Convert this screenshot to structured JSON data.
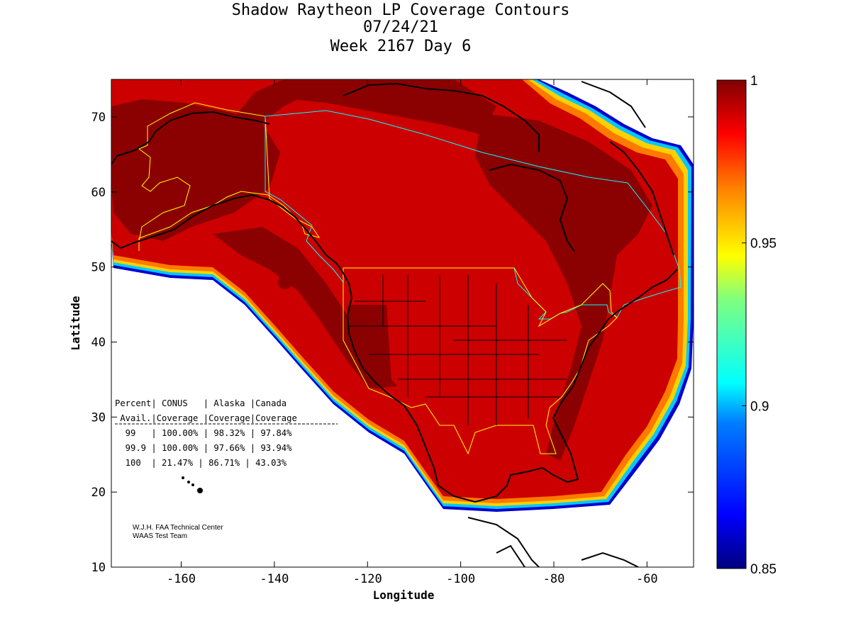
{
  "title": {
    "line1": "Shadow Raytheon LP Coverage Contours",
    "line2": "07/24/21",
    "line3": "Week 2167 Day 6"
  },
  "axes": {
    "xlabel": "Longitude",
    "ylabel": "Latitude",
    "xlim": [
      -175,
      -50
    ],
    "ylim": [
      10,
      75
    ],
    "xticks": [
      -160,
      -140,
      -120,
      -100,
      -80,
      -60
    ],
    "yticks": [
      10,
      20,
      30,
      40,
      50,
      60,
      70
    ]
  },
  "colorbar": {
    "min": 0.85,
    "max": 1,
    "ticks": [
      "1",
      "0.95",
      "0.9",
      "0.85"
    ],
    "colormap": "jet",
    "stops": [
      "#00007f",
      "#0000ff",
      "#007fff",
      "#00ffff",
      "#7fff7f",
      "#ffff00",
      "#ff7f00",
      "#ff0000",
      "#7f0000"
    ]
  },
  "colors": {
    "background_fill": "#cc0000",
    "highest_band": "#8b0000",
    "coastline": "#000000",
    "us_border": "#ffff00",
    "canada_border": "#00ffff"
  },
  "table": {
    "header1": "Percent| CONUS   | Alaska |Canada",
    "header2": " Avail.|Coverage |Coverage|Coverage",
    "rows": [
      "  99   | 100.00% | 98.32% | 97.84%",
      "  99.9 | 100.00% | 97.66% | 93.94%",
      "  100  | 21.47% | 86.71% | 43.03%"
    ]
  },
  "credit": {
    "line1": "W.J.H. FAA Technical Center",
    "line2": "WAAS Test Team"
  }
}
